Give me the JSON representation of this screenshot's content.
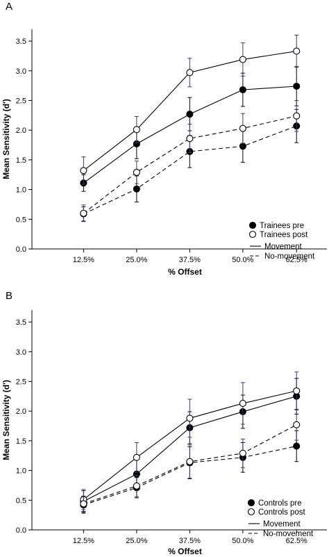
{
  "chart_data": [
    {
      "type": "line",
      "panel_label": "A",
      "xlabel": "% Offset",
      "ylabel": "Mean Sensitivity (d')",
      "categories": [
        "12.5%",
        "25.0%",
        "37.5%",
        "50.0%",
        "62.5%"
      ],
      "ylim": [
        0,
        3.7
      ],
      "yticks": [
        "0.0",
        "0.5",
        "1.0",
        "1.5",
        "2.0",
        "2.5",
        "3.0",
        "3.5"
      ],
      "grid": false,
      "legend_position": "bottom-right",
      "legend": {
        "markers": [
          {
            "label": "Trainees pre",
            "marker": "filled-circle"
          },
          {
            "label": "Trainees post",
            "marker": "open-circle"
          }
        ],
        "lines": [
          {
            "label": "Movement",
            "style": "solid"
          },
          {
            "label": "No-movement",
            "style": "dashed"
          }
        ]
      },
      "series": [
        {
          "group": "pre",
          "condition": "Movement",
          "marker": "filled",
          "line": "solid",
          "values": [
            1.11,
            1.77,
            2.27,
            2.68,
            2.74
          ],
          "err": [
            0.14,
            0.25,
            0.28,
            0.28,
            0.33
          ]
        },
        {
          "group": "post",
          "condition": "Movement",
          "marker": "open",
          "line": "solid",
          "values": [
            1.32,
            2.01,
            2.97,
            3.19,
            3.33
          ],
          "err": [
            0.23,
            0.22,
            0.24,
            0.28,
            0.27
          ]
        },
        {
          "group": "pre",
          "condition": "No-movement",
          "marker": "filled",
          "line": "dashed",
          "values": [
            0.59,
            1.01,
            1.64,
            1.73,
            2.07
          ],
          "err": [
            0.12,
            0.22,
            0.27,
            0.27,
            0.28
          ]
        },
        {
          "group": "post",
          "condition": "No-movement",
          "marker": "open",
          "line": "dashed",
          "values": [
            0.6,
            1.29,
            1.86,
            2.03,
            2.24
          ],
          "err": [
            0.14,
            0.19,
            0.24,
            0.25,
            0.26
          ]
        }
      ]
    },
    {
      "type": "line",
      "panel_label": "B",
      "xlabel": "% Offset",
      "ylabel": "Mean Sensitivity (d')",
      "categories": [
        "12.5%",
        "25.0%",
        "37.5%",
        "50.0%",
        "62.5%"
      ],
      "ylim": [
        0,
        3.7
      ],
      "yticks": [
        "0.0",
        "0.5",
        "1.0",
        "1.5",
        "2.0",
        "2.5",
        "3.0",
        "3.5"
      ],
      "grid": false,
      "legend_position": "bottom-right",
      "legend": {
        "markers": [
          {
            "label": "Controls pre",
            "marker": "filled-circle"
          },
          {
            "label": "Controls post",
            "marker": "open-circle"
          }
        ],
        "lines": [
          {
            "label": "Movement",
            "style": "solid"
          },
          {
            "label": "No-movement",
            "style": "dashed"
          }
        ]
      },
      "series": [
        {
          "group": "pre",
          "condition": "Movement",
          "marker": "filled",
          "line": "solid",
          "values": [
            0.48,
            0.94,
            1.72,
            1.99,
            2.25
          ],
          "err": [
            0.18,
            0.24,
            0.27,
            0.28,
            0.3
          ]
        },
        {
          "group": "post",
          "condition": "Movement",
          "marker": "open",
          "line": "solid",
          "values": [
            0.51,
            1.22,
            1.88,
            2.13,
            2.34
          ],
          "err": [
            0.17,
            0.25,
            0.32,
            0.35,
            0.32
          ]
        },
        {
          "group": "pre",
          "condition": "No-movement",
          "marker": "filled",
          "line": "dashed",
          "values": [
            0.42,
            0.71,
            1.13,
            1.22,
            1.41
          ],
          "err": [
            0.14,
            0.17,
            0.27,
            0.25,
            0.26
          ]
        },
        {
          "group": "post",
          "condition": "No-movement",
          "marker": "open",
          "line": "dashed",
          "values": [
            0.44,
            0.74,
            1.15,
            1.29,
            1.77
          ],
          "err": [
            0.13,
            0.18,
            0.28,
            0.24,
            0.26
          ]
        }
      ]
    }
  ]
}
